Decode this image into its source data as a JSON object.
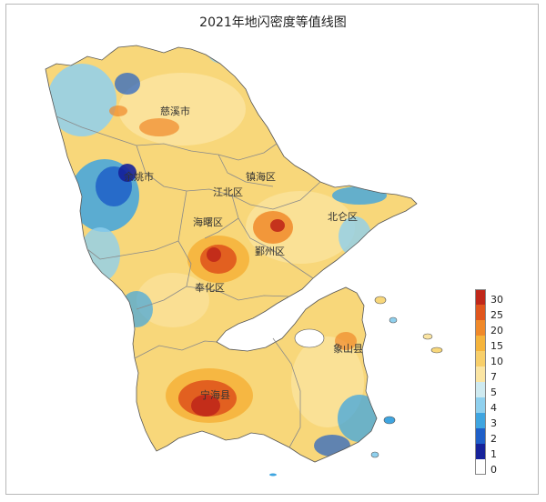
{
  "title": "2021年地闪密度等值线图",
  "places": [
    {
      "id": "cixi",
      "label": "慈溪市"
    },
    {
      "id": "yuyao",
      "label": "余姚市"
    },
    {
      "id": "zhenhai",
      "label": "镇海区"
    },
    {
      "id": "jiangbei",
      "label": "江北区"
    },
    {
      "id": "beilun",
      "label": "北仑区"
    },
    {
      "id": "haishu",
      "label": "海曙区"
    },
    {
      "id": "yinzhou",
      "label": "鄞州区"
    },
    {
      "id": "fenghua",
      "label": "奉化区"
    },
    {
      "id": "xiangshan",
      "label": "象山县"
    },
    {
      "id": "ninghai",
      "label": "宁海县"
    }
  ],
  "legend": {
    "levels": [
      {
        "label": "30",
        "color": "#c0281a"
      },
      {
        "label": "25",
        "color": "#e0561d"
      },
      {
        "label": "20",
        "color": "#f0892a"
      },
      {
        "label": "15",
        "color": "#f5b43c"
      },
      {
        "label": "10",
        "color": "#f8cf6a"
      },
      {
        "label": "7",
        "color": "#fbe5a3"
      },
      {
        "label": "5",
        "color": "#cfeaf0"
      },
      {
        "label": "4",
        "color": "#8fd0ee"
      },
      {
        "label": "3",
        "color": "#3fa5e0"
      },
      {
        "label": "2",
        "color": "#1f5fc8"
      },
      {
        "label": "1",
        "color": "#16229a"
      },
      {
        "label": "0",
        "color": "#ffffff"
      }
    ]
  },
  "colors": {
    "base": "#f8d77a",
    "boundary": "#8a8a8a",
    "outline": "#555555"
  }
}
